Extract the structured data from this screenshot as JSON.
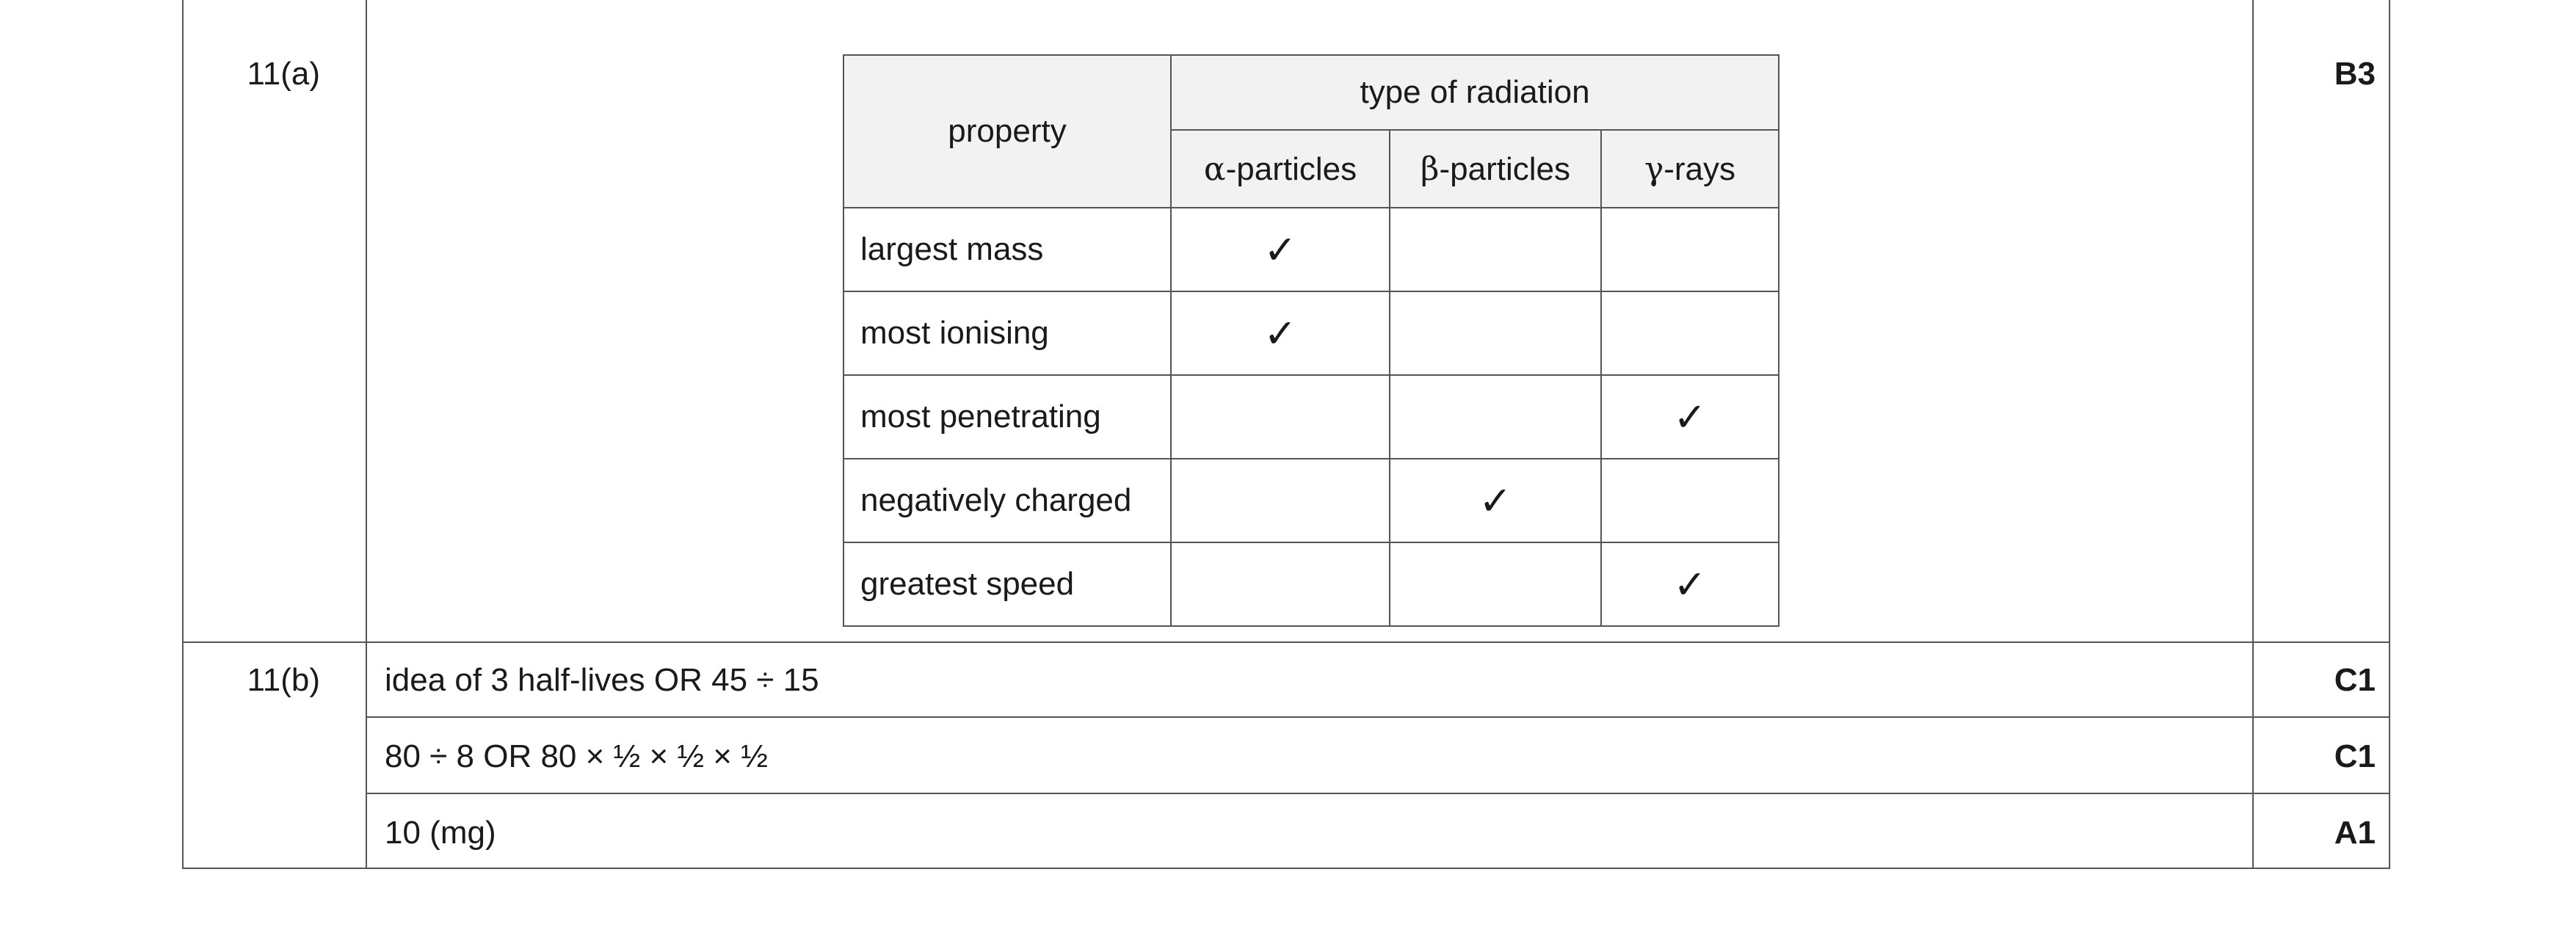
{
  "rows": {
    "a": {
      "question": "11(a)",
      "mark": "B3"
    },
    "b": {
      "question": "11(b)",
      "lines": [
        {
          "answer": "idea of 3 half-lives OR 45 ÷ 15",
          "mark": "C1"
        },
        {
          "answer": "80 ÷ 8 OR 80 × ½ × ½ × ½",
          "mark": "C1"
        },
        {
          "answer": "10 (mg)",
          "mark": "A1"
        }
      ]
    }
  },
  "table": {
    "property_header": "property",
    "group_header": "type of radiation",
    "columns": [
      {
        "symbol": "α",
        "label": "-particles"
      },
      {
        "symbol": "β",
        "label": "-particles"
      },
      {
        "symbol": "γ",
        "label": "-rays"
      }
    ],
    "tick_char": "✓",
    "rows": [
      {
        "property": "largest mass",
        "ticks": [
          true,
          false,
          false
        ]
      },
      {
        "property": "most ionising",
        "ticks": [
          true,
          false,
          false
        ]
      },
      {
        "property": "most penetrating",
        "ticks": [
          false,
          false,
          true
        ]
      },
      {
        "property": "negatively charged",
        "ticks": [
          false,
          true,
          false
        ]
      },
      {
        "property": "greatest speed",
        "ticks": [
          false,
          false,
          true
        ]
      }
    ]
  }
}
